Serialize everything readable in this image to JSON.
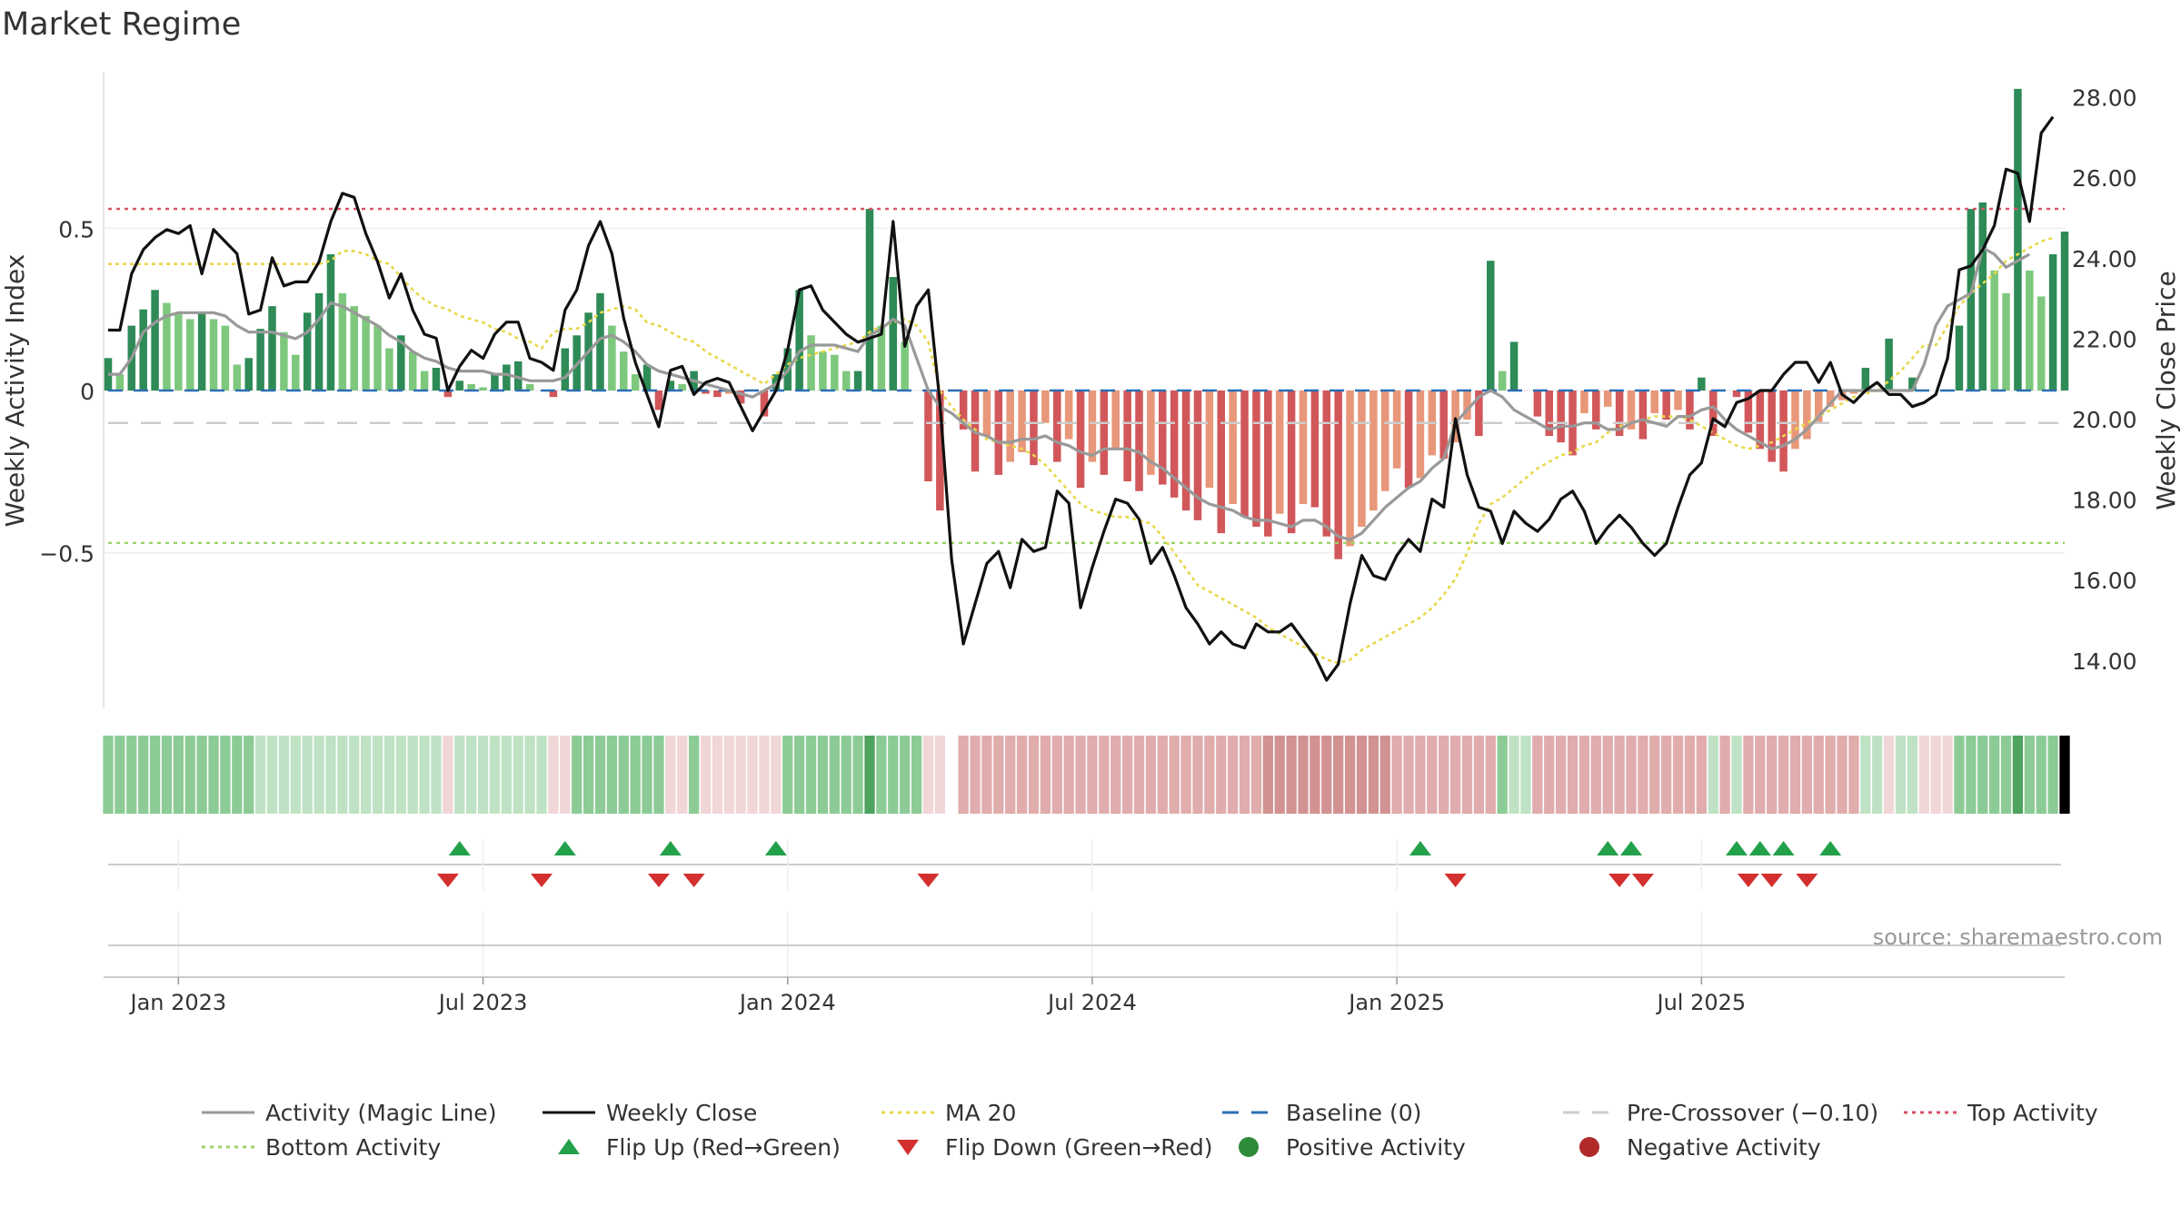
{
  "chart_data": {
    "type": "bar+line",
    "title": "Market Regime",
    "ylabel_left": "Weekly Activity Index",
    "ylabel_right": "Weekly Close Price",
    "y_left_ticks": [
      {
        "value": 0.5,
        "label": "0.5"
      },
      {
        "value": 0,
        "label": "0"
      },
      {
        "value": -0.5,
        "label": "−0.5"
      }
    ],
    "y_left_range": [
      -0.98,
      0.98
    ],
    "y_right_ticks": [
      "14.00",
      "16.00",
      "18.00",
      "20.00",
      "22.00",
      "24.00",
      "26.00",
      "28.00"
    ],
    "y_right_tick_values": [
      14,
      16,
      18,
      20,
      22,
      24,
      26,
      28
    ],
    "y_right_range": [
      12.8,
      28.6
    ],
    "x_ticks": [
      {
        "week": 6,
        "label": "Jan 2023"
      },
      {
        "week": 32,
        "label": "Jul 2023"
      },
      {
        "week": 58,
        "label": "Jan 2024"
      },
      {
        "week": 84,
        "label": "Jul 2024"
      },
      {
        "week": 110,
        "label": "Jan 2025"
      },
      {
        "week": 136,
        "label": "Jul 2025"
      }
    ],
    "n_weeks": 157,
    "reference_lines": {
      "top_activity": 0.56,
      "bottom_activity": -0.47,
      "pre_crossover": -0.1,
      "baseline": 0
    },
    "activity": [
      0.1,
      0.05,
      0.2,
      0.25,
      0.31,
      0.27,
      0.24,
      0.22,
      0.24,
      0.22,
      0.2,
      0.08,
      0.1,
      0.19,
      0.26,
      0.18,
      0.11,
      0.24,
      0.3,
      0.42,
      0.3,
      0.26,
      0.23,
      0.2,
      0.13,
      0.17,
      0.12,
      0.06,
      0.07,
      -0.02,
      0.03,
      0.02,
      0.01,
      0.05,
      0.08,
      0.09,
      0.02,
      0.0,
      -0.02,
      0.13,
      0.17,
      0.24,
      0.3,
      0.2,
      0.12,
      0.05,
      0.08,
      -0.06,
      0.03,
      0.02,
      0.06,
      -0.01,
      -0.02,
      -0.01,
      -0.04,
      0.0,
      -0.08,
      0.05,
      0.13,
      0.31,
      0.17,
      0.12,
      0.11,
      0.06,
      0.06,
      0.56,
      0.2,
      0.35,
      0.15,
      0.0,
      -0.28,
      -0.37,
      0.0,
      -0.12,
      -0.25,
      -0.14,
      -0.26,
      -0.22,
      -0.19,
      -0.23,
      -0.1,
      -0.22,
      -0.15,
      -0.3,
      -0.22,
      -0.26,
      -0.18,
      -0.28,
      -0.31,
      -0.26,
      -0.29,
      -0.33,
      -0.37,
      -0.4,
      -0.3,
      -0.44,
      -0.35,
      -0.39,
      -0.42,
      -0.45,
      -0.38,
      -0.44,
      -0.35,
      -0.36,
      -0.45,
      -0.52,
      -0.48,
      -0.42,
      -0.37,
      -0.31,
      -0.24,
      -0.3,
      -0.27,
      -0.2,
      -0.21,
      -0.16,
      -0.09,
      -0.14,
      0.4,
      0.06,
      0.15,
      0.0,
      -0.08,
      -0.14,
      -0.16,
      -0.2,
      -0.07,
      -0.12,
      -0.05,
      -0.14,
      -0.12,
      -0.15,
      -0.07,
      -0.09,
      -0.06,
      -0.12,
      0.04,
      -0.14,
      0.0,
      -0.02,
      -0.13,
      -0.18,
      -0.22,
      -0.25,
      -0.18,
      -0.15,
      -0.1,
      -0.05,
      -0.03,
      -0.01,
      0.07,
      0.0,
      0.16,
      0.0,
      0.04,
      0.0,
      0.0
    ],
    "activity_tail": [
      0.0,
      0.2,
      0.56,
      0.58,
      0.37,
      0.3,
      0.93,
      0.37,
      0.29,
      0.42,
      0.49
    ],
    "magic_line": [
      0.05,
      0.05,
      0.1,
      0.18,
      0.21,
      0.23,
      0.24,
      0.24,
      0.24,
      0.24,
      0.23,
      0.2,
      0.18,
      0.18,
      0.18,
      0.17,
      0.16,
      0.18,
      0.22,
      0.27,
      0.26,
      0.24,
      0.22,
      0.2,
      0.17,
      0.15,
      0.12,
      0.1,
      0.09,
      0.07,
      0.06,
      0.06,
      0.06,
      0.05,
      0.05,
      0.04,
      0.03,
      0.03,
      0.03,
      0.04,
      0.08,
      0.12,
      0.16,
      0.17,
      0.15,
      0.12,
      0.08,
      0.06,
      0.05,
      0.04,
      0.03,
      0.02,
      0.01,
      0.0,
      -0.01,
      -0.02,
      0.0,
      0.02,
      0.06,
      0.12,
      0.14,
      0.14,
      0.14,
      0.13,
      0.12,
      0.17,
      0.19,
      0.22,
      0.2,
      0.1,
      0.0,
      -0.05,
      -0.07,
      -0.1,
      -0.13,
      -0.14,
      -0.16,
      -0.16,
      -0.15,
      -0.15,
      -0.14,
      -0.16,
      -0.17,
      -0.19,
      -0.2,
      -0.18,
      -0.18,
      -0.18,
      -0.19,
      -0.22,
      -0.24,
      -0.27,
      -0.3,
      -0.33,
      -0.35,
      -0.36,
      -0.37,
      -0.39,
      -0.4,
      -0.4,
      -0.41,
      -0.42,
      -0.4,
      -0.4,
      -0.42,
      -0.45,
      -0.46,
      -0.44,
      -0.4,
      -0.36,
      -0.33,
      -0.3,
      -0.28,
      -0.24,
      -0.21,
      -0.1,
      -0.06,
      -0.02,
      0.0,
      -0.02,
      -0.06,
      -0.08,
      -0.1,
      -0.12,
      -0.11,
      -0.11,
      -0.1,
      -0.1,
      -0.12,
      -0.12,
      -0.1,
      -0.09,
      -0.1,
      -0.11,
      -0.08,
      -0.08,
      -0.06,
      -0.05,
      -0.09,
      -0.12,
      -0.14,
      -0.16,
      -0.18,
      -0.17,
      -0.15,
      -0.12,
      -0.08,
      -0.04,
      0.0,
      0.0,
      0.0,
      0.0,
      0.0,
      0.0
    ],
    "magic_line_tail": [
      0.0,
      0.08,
      0.2,
      0.26,
      0.28,
      0.3,
      0.44,
      0.42,
      0.38,
      0.4,
      0.42
    ],
    "ma20": [
      0.39,
      0.39,
      0.39,
      0.39,
      0.39,
      0.39,
      0.39,
      0.39,
      0.39,
      0.39,
      0.39,
      0.39,
      0.39,
      0.39,
      0.39,
      0.39,
      0.39,
      0.39,
      0.39,
      0.4,
      0.43,
      0.43,
      0.42,
      0.4,
      0.39,
      0.35,
      0.31,
      0.28,
      0.26,
      0.25,
      0.23,
      0.22,
      0.21,
      0.19,
      0.18,
      0.16,
      0.15,
      0.13,
      0.18,
      0.19,
      0.19,
      0.21,
      0.24,
      0.25,
      0.26,
      0.25,
      0.21,
      0.2,
      0.18,
      0.16,
      0.15,
      0.12,
      0.1,
      0.08,
      0.06,
      0.04,
      0.02,
      0.05,
      0.08,
      0.1,
      0.11,
      0.12,
      0.13,
      0.14,
      0.15,
      0.18,
      0.2,
      0.21,
      0.22,
      0.2,
      0.15,
      0.0,
      -0.05,
      -0.09,
      -0.12,
      -0.15,
      -0.16,
      -0.17,
      -0.18,
      -0.2,
      -0.23,
      -0.27,
      -0.31,
      -0.35,
      -0.37,
      -0.38,
      -0.39,
      -0.39,
      -0.4,
      -0.41,
      -0.45,
      -0.5,
      -0.55,
      -0.6,
      -0.62,
      -0.64,
      -0.66,
      -0.68,
      -0.7,
      -0.73,
      -0.75,
      -0.77,
      -0.79,
      -0.81,
      -0.83,
      -0.84,
      -0.83,
      -0.8,
      -0.78,
      -0.76,
      -0.74,
      -0.72,
      -0.7,
      -0.67,
      -0.63,
      -0.58,
      -0.5,
      -0.41,
      -0.35,
      -0.33,
      -0.3,
      -0.27,
      -0.24,
      -0.22,
      -0.2,
      -0.19,
      -0.17,
      -0.16,
      -0.13,
      -0.11,
      -0.1,
      -0.09,
      -0.08,
      -0.08,
      -0.08,
      -0.09,
      -0.11,
      -0.13,
      -0.15,
      -0.17,
      -0.18,
      -0.17,
      -0.16,
      -0.14,
      -0.12,
      -0.1,
      -0.08,
      -0.06,
      -0.04,
      -0.02,
      -0.01,
      0.0,
      0.03,
      0.06,
      0.1,
      0.14
    ],
    "ma20_tail": [
      0.14,
      0.2,
      0.26,
      0.3,
      0.33,
      0.36,
      0.4,
      0.42,
      0.44,
      0.46,
      0.47
    ],
    "weekly_close": [
      22.2,
      22.2,
      23.6,
      24.2,
      24.5,
      24.7,
      24.6,
      24.8,
      23.6,
      24.7,
      24.4,
      24.1,
      22.6,
      22.7,
      24,
      23.3,
      23.4,
      23.4,
      23.9,
      24.9,
      25.6,
      25.5,
      24.6,
      23.9,
      23,
      23.6,
      22.7,
      22.1,
      22,
      20.7,
      21.3,
      21.7,
      21.5,
      22.1,
      22.4,
      22.4,
      21.5,
      21.4,
      21.2,
      22.7,
      23.2,
      24.3,
      24.9,
      24.1,
      22.5,
      21.4,
      20.6,
      19.8,
      21.2,
      21.3,
      20.6,
      20.9,
      21,
      20.9,
      20.3,
      19.7,
      20.2,
      20.7,
      21.7,
      23.2,
      23.3,
      22.7,
      22.4,
      22.1,
      21.9,
      22,
      22.1,
      24.9,
      21.8,
      22.8,
      23.2,
      20.4,
      16.5,
      14.4,
      15.4,
      16.4,
      16.7,
      15.8,
      17.0,
      16.7,
      16.8,
      18.2,
      17.9,
      15.3,
      16.3,
      17.2,
      18.0,
      17.9,
      17.5,
      16.4,
      16.8,
      16.1,
      15.3,
      14.9,
      14.4,
      14.7,
      14.4,
      14.3,
      14.9,
      14.7,
      14.7,
      14.9,
      14.5,
      14.1,
      13.5,
      13.9,
      15.4,
      16.6,
      16.1,
      16.0,
      16.6,
      17.0,
      16.7,
      18.0,
      17.8,
      20.0,
      18.6,
      17.8,
      17.7,
      16.9,
      17.7,
      17.4,
      17.2,
      17.5,
      18.0,
      18.2,
      17.7,
      16.9,
      17.3,
      17.6,
      17.3,
      16.9,
      16.6,
      16.9,
      17.8,
      18.6,
      18.9,
      20.0,
      19.8,
      20.4,
      20.5,
      20.7,
      20.7,
      21.1,
      21.4,
      21.4,
      20.9,
      21.4,
      20.6,
      20.4,
      20.7,
      20.9,
      20.6,
      20.6,
      20.3
    ],
    "weekly_close_tail": [
      20.4,
      20.6,
      21.5,
      23.7,
      23.8,
      24.2,
      24.8,
      26.2,
      26.1,
      24.9,
      27.1,
      27.5
    ],
    "regime_strip": [
      2,
      2,
      2,
      2,
      2,
      2,
      2,
      2,
      2,
      2,
      2,
      2,
      2,
      1,
      1,
      1,
      1,
      1,
      1,
      1,
      1,
      1,
      1,
      1,
      1,
      1,
      1,
      1,
      1,
      -1,
      1,
      1,
      1,
      1,
      1,
      1,
      1,
      1,
      -1,
      -1,
      2,
      2,
      2,
      2,
      2,
      2,
      2,
      2,
      -1,
      -1,
      2,
      -1,
      -1,
      -1,
      -1,
      -1,
      -1,
      -1,
      2,
      2,
      2,
      2,
      2,
      2,
      2,
      3,
      2,
      2,
      2,
      2,
      -1,
      -1,
      0,
      -2,
      -2,
      -2,
      -2,
      -2,
      -2,
      -2,
      -2,
      -2,
      -2,
      -2,
      -2,
      -2,
      -2,
      -2,
      -2,
      -2,
      -2,
      -2,
      -2,
      -2,
      -2,
      -2,
      -2,
      -2,
      -2,
      -3,
      -3,
      -3,
      -3,
      -3,
      -3,
      -3,
      -3,
      -3,
      -3,
      -3,
      -2,
      -2,
      -2,
      -2,
      -2,
      -2,
      -2,
      -2,
      -2,
      2,
      1,
      1,
      -2,
      -2,
      -2,
      -2,
      -2,
      -2,
      -2,
      -2,
      -2,
      -2,
      -2,
      -2,
      -2,
      -2,
      -2,
      1,
      -2,
      1,
      -2,
      -2,
      -2,
      -2,
      -2,
      -2,
      -2,
      -2,
      -2,
      -2,
      1,
      1,
      -1,
      1,
      1,
      -1,
      -1,
      -1,
      2,
      2,
      2,
      2,
      2,
      3,
      2,
      2,
      2
    ],
    "flip_up_weeks": [
      30,
      39,
      48,
      57,
      112,
      128,
      130,
      139,
      141,
      143,
      147
    ],
    "flip_down_weeks": [
      29,
      37,
      47,
      50,
      70,
      115,
      129,
      131,
      140,
      142,
      145
    ],
    "legend": [
      {
        "label": "Activity (Magic Line)",
        "kind": "line",
        "color": "#999999",
        "dash": "solid"
      },
      {
        "label": "Weekly Close",
        "kind": "line",
        "color": "#111111",
        "dash": "solid"
      },
      {
        "label": "MA 20",
        "kind": "line",
        "color": "#e8d84a",
        "dash": "dotted"
      },
      {
        "label": "Baseline (0)",
        "kind": "line",
        "color": "#2b6fb4",
        "dash": "dashed"
      },
      {
        "label": "Pre-Crossover (−0.10)",
        "kind": "line",
        "color": "#cccccc",
        "dash": "dashed"
      },
      {
        "label": "Top Activity",
        "kind": "line",
        "color": "#d9536b",
        "dash": "dotted"
      },
      {
        "label": "Bottom Activity",
        "kind": "line",
        "color": "#9ed36a",
        "dash": "dotted"
      },
      {
        "label": "Flip Up (Red→Green)",
        "kind": "tri-up",
        "color": "#23a04a"
      },
      {
        "label": "Flip Down (Green→Red)",
        "kind": "tri-down",
        "color": "#d32f2f"
      },
      {
        "label": "Positive Activity",
        "kind": "dot",
        "color": "#2e8b3a"
      },
      {
        "label": "Negative Activity",
        "kind": "dot",
        "color": "#b02a2a"
      }
    ],
    "source": "source: sharemaestro.com"
  }
}
